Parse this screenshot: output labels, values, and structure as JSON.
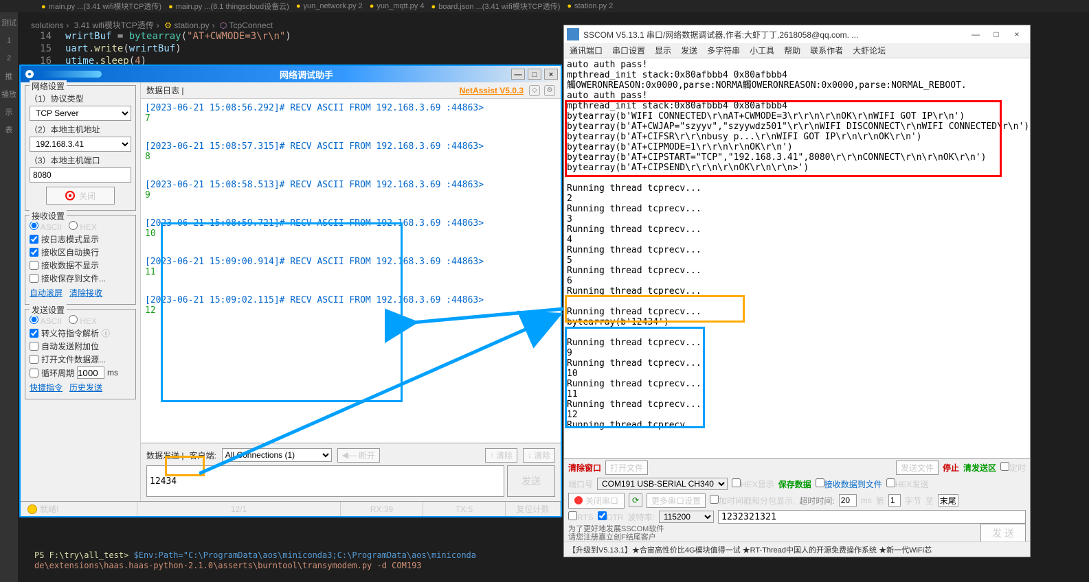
{
  "colors": {
    "blue_highlight": "#00a0ff",
    "orange_highlight": "#ffaa00",
    "red_highlight": "#ff0000",
    "na_brand": "#ff8800",
    "link": "#0066cc",
    "green_log": "#169b16"
  },
  "vscode": {
    "tabs": [
      "main.py ...(3.41 wifi模块TCP透传)",
      "main.py ...(8.1 thingscloud设备云)",
      "yun_network.py 2",
      "yun_mqtt.py 4",
      "board.json ...(3.41 wifi模块TCP透传)",
      "station.py 2"
    ],
    "breadcrumb": {
      "a": "solutions",
      "b": "3.41 wifi模块TCP透传",
      "c": "station.py",
      "d": "TcpConnect"
    },
    "code": {
      "l14_no": "14",
      "l14": "wrirtBuf = bytearray(\"AT+CWMODE=3\\r\\n\")",
      "l15_no": "15",
      "l15": "uart.write(wrirtBuf)",
      "l16_no": "16",
      "l16": "utime.sleep(4)"
    },
    "terminal": {
      "l1_prefix": "PS F:\\try\\all_test> ",
      "l1_cmd": "$Env:Path=\"C:\\ProgramData\\aos\\miniconda3;C:\\ProgramData\\aos\\miniconda",
      "l2": "de\\extensions\\haas.haas-python-2.1.0\\asserts\\burntool\\transymodem.py -d COM193"
    },
    "gutter": {
      "ic_test": "测试",
      "ic_job": "推",
      "ic_play": "播放",
      "ic_more": "示",
      "ic_outline": "表"
    }
  },
  "netassist": {
    "title": "网络调试助手",
    "brand": "NetAssist V5.0.3",
    "panels": {
      "net": {
        "title": "网络设置",
        "f1_label": "（1）协议类型",
        "f1_value": "TCP Server",
        "f2_label": "（2）本地主机地址",
        "f2_value": "192.168.3.41",
        "f3_label": "（3）本地主机端口",
        "f3_value": "8080",
        "close_btn": "关闭"
      },
      "recv": {
        "title": "接收设置",
        "r_ascii": "ASCII",
        "r_hex": "HEX",
        "c1": "按日志模式显示",
        "c2": "接收区自动换行",
        "c3": "接收数据不显示",
        "c4": "接收保存到文件...",
        "link1": "自动滚屏",
        "link2": "清除接收"
      },
      "send": {
        "title": "发送设置",
        "r_ascii": "ASCII",
        "r_hex": "HEX",
        "c1": "转义符指令解析",
        "c2": "自动发送附加位",
        "c3": "打开文件数据源...",
        "c4_a": "循环周期",
        "c4_val": "1000",
        "c4_b": "ms",
        "link1": "快捷指令",
        "link2": "历史发送"
      }
    },
    "log": {
      "head": "数据日志 |",
      "entries": [
        {
          "h": "[2023-06-21 15:08:56.292]# RECV ASCII FROM 192.168.3.69 :44863>",
          "b": "7"
        },
        {
          "h": "[2023-06-21 15:08:57.315]# RECV ASCII FROM 192.168.3.69 :44863>",
          "b": "8"
        },
        {
          "h": "[2023-06-21 15:08:58.513]# RECV ASCII FROM 192.168.3.69 :44863>",
          "b": "9"
        },
        {
          "h": "[2023-06-21 15:08:59.721]# RECV ASCII FROM 192.168.3.69 :44863>",
          "b": "10"
        },
        {
          "h": "[2023-06-21 15:09:00.914]# RECV ASCII FROM 192.168.3.69 :44863>",
          "b": "11"
        },
        {
          "h": "[2023-06-21 15:09:02.115]# RECV ASCII FROM 192.168.3.69 :44863>",
          "b": "12"
        }
      ]
    },
    "send_area": {
      "lbl1": "数据发送 |",
      "lbl2": "客户端:",
      "conn_sel": "All Connections (1)",
      "disconnect": "断开",
      "clear_recv": "清除",
      "clear_send": "清除",
      "input_value": "12434",
      "send_btn": "发送"
    },
    "status": {
      "ready": "就绪!",
      "conn": "12/1",
      "rx": "RX:39",
      "tx": "TX:5",
      "reset": "复位计数"
    }
  },
  "sscom": {
    "title": "SSCOM V5.13.1 串口/网络数据调试器,作者:大虾丁丁,2618058@qq.com. ...",
    "menu": [
      "通讯端口",
      "串口设置",
      "显示",
      "发送",
      "多字符串",
      "小工具",
      "帮助",
      "联系作者",
      "大虾论坛"
    ],
    "log_top": "auto auth pass!\nmpthread_init stack:0x80afbbb4 0x80afbbb4\n觸OWERONREASON:0x0000,parse:NORMA觸OWERONREASON:0x0000,parse:NORMAL_REBOOT.\nauto auth pass!",
    "log_red": "mpthread_init stack:0x80afbbb4 0x80afbbb4\nbytearray(b'WIFI CONNECTED\\r\\nAT+CWMODE=3\\r\\r\\n\\r\\nOK\\r\\nWIFI GOT IP\\r\\n')\nbytearray(b'AT+CWJAP=\"szyyv\",\"szyywdz501\"\\r\\r\\nWIFI DISCONNECT\\r\\nWIFI CONNECTED\\r\\n')\nbytearray(b'AT+CIFSR\\r\\r\\nbusy p...\\r\\nWIFI GOT IP\\r\\n\\r\\nOK\\r\\n')\nbytearray(b'AT+CIPMODE=1\\r\\r\\n\\r\\nOK\\r\\n')\nbytearray(b'AT+CIPSTART=\"TCP\",\"192.168.3.41\",8080\\r\\r\\nCONNECT\\r\\n\\r\\nOK\\r\\n')\nbytearray(b'AT+CIPSEND\\r\\r\\n\\r\\nOK\\r\\n\\r\\n>')",
    "log_mid": "Running thread tcprecv...\n2\nRunning thread tcprecv...\n3\nRunning thread tcprecv...\n4\nRunning thread tcprecv...\n5\nRunning thread tcprecv...\n6\nRunning thread tcprecv...",
    "log_orange": "Running thread tcprecv...\nbytearray(b'12434') ——————",
    "log_blue": "Running thread tcprecv...\n9\nRunning thread tcprecv...\n10\nRunning thread tcprecv...\n11\nRunning thread tcprecv...\n12\nRunning thread tcprecv...",
    "bottom": {
      "clear_win": "清除窗口",
      "open_file": "打开文件",
      "send_file": "发送文件",
      "stop": "停止",
      "clear_send": "清发送区",
      "timed": "定时",
      "port_lbl": "端口号",
      "port_val": "COM191 USB-SERIAL CH340",
      "hex_show": "HEX显示",
      "save_data": "保存数据",
      "recv_to_file": "接收数据到文件",
      "hex_send": "HEX发送",
      "close_port": "关闭串口",
      "more": "更多串口设置",
      "time_gap": "加时间戳和分包显示,",
      "timeout_lbl": "超时时间:",
      "timeout_val": "20",
      "ms": "ms",
      "no1_lbl": "第",
      "no1_val": "1",
      "byte_lbl": "字节",
      "to_lbl": "至",
      "end_lbl": "末尾",
      "rts": "RTS",
      "dtr": "DTR",
      "baud_lbl": "波特率:",
      "baud_val": "115200",
      "input_val": "1232321321",
      "send_btn": "发 送",
      "tip1": "为了更好地发展SSCOM软件",
      "tip2": "请您注册嘉立创F结尾客户"
    },
    "foot": "【升级到V5.13.1】★合宙高性价比4G模块值得一试 ★RT-Thread中国人的开源免费操作系统 ★新一代WiFi芯"
  }
}
